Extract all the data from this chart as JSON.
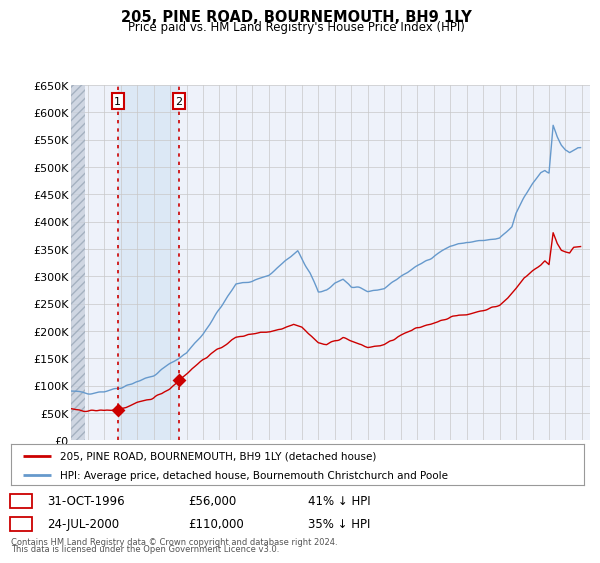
{
  "title": "205, PINE ROAD, BOURNEMOUTH, BH9 1LY",
  "subtitle": "Price paid vs. HM Land Registry's House Price Index (HPI)",
  "bg_color": "#ffffff",
  "plot_bg_color": "#eef2fa",
  "hatch_color": "#d0d8e8",
  "grid_color": "#c8c8c8",
  "red_line_color": "#cc0000",
  "blue_line_color": "#6699cc",
  "highlight_color": "#dce8f5",
  "ylim": [
    0,
    650000
  ],
  "yticks": [
    0,
    50000,
    100000,
    150000,
    200000,
    250000,
    300000,
    350000,
    400000,
    450000,
    500000,
    550000,
    600000,
    650000
  ],
  "ytick_labels": [
    "£0",
    "£50K",
    "£100K",
    "£150K",
    "£200K",
    "£250K",
    "£300K",
    "£350K",
    "£400K",
    "£450K",
    "£500K",
    "£550K",
    "£600K",
    "£650K"
  ],
  "xmin": 1994.0,
  "xmax": 2025.5,
  "sale1_x": 1996.83,
  "sale1_y": 56000,
  "sale2_x": 2000.55,
  "sale2_y": 110000,
  "sale1_date": "31-OCT-1996",
  "sale1_price": "£56,000",
  "sale1_hpi": "41% ↓ HPI",
  "sale2_date": "24-JUL-2000",
  "sale2_price": "£110,000",
  "sale2_hpi": "35% ↓ HPI",
  "legend_line1": "205, PINE ROAD, BOURNEMOUTH, BH9 1LY (detached house)",
  "legend_line2": "HPI: Average price, detached house, Bournemouth Christchurch and Poole",
  "footer1": "Contains HM Land Registry data © Crown copyright and database right 2024.",
  "footer2": "This data is licensed under the Open Government Licence v3.0."
}
